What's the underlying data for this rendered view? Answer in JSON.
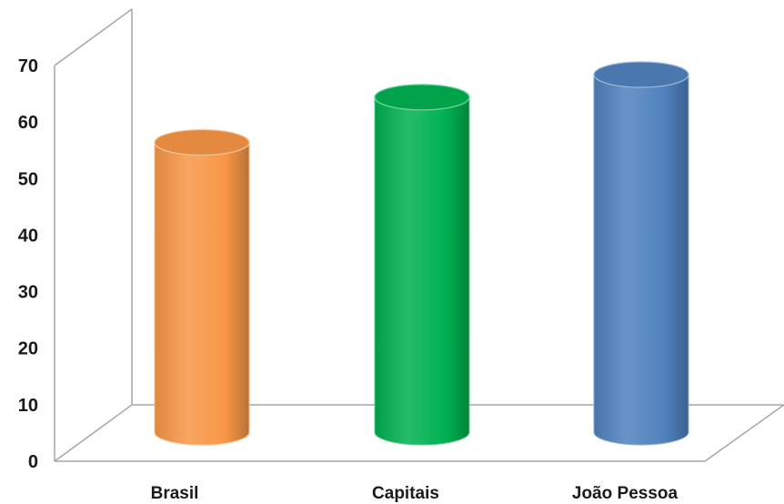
{
  "chart_data": {
    "type": "bar",
    "title": "",
    "xlabel": "",
    "ylabel": "",
    "categories": [
      "Brasil",
      "Capitais",
      "João Pessoa"
    ],
    "values": [
      58,
      66,
      70
    ],
    "ylim": [
      0,
      70
    ],
    "yticks": [
      "0",
      "10",
      "20",
      "30",
      "40",
      "50",
      "60",
      "70"
    ],
    "grid": false,
    "legend": "none",
    "style": "3d-cylinder",
    "colors": [
      "#F79646",
      "#00B050",
      "#4F81BD"
    ]
  }
}
